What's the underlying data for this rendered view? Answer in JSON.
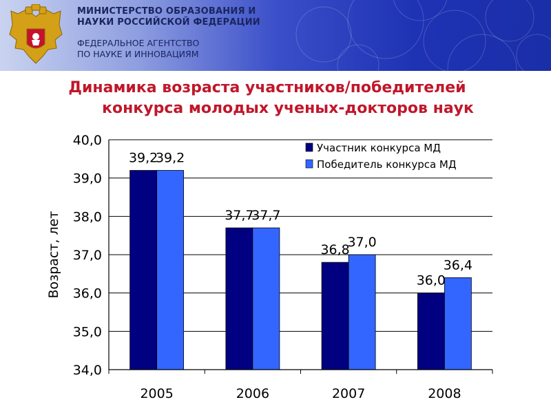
{
  "header": {
    "ministry_line1": "МИНИСТЕРСТВО ОБРАЗОВАНИЯ И",
    "ministry_line2": "НАУКИ РОССИЙСКОЙ ФЕДЕРАЦИИ",
    "agency_line1": "ФЕДЕРАЛЬНОЕ АГЕНТСТВО",
    "agency_line2": "ПО НАУКЕ И ИННОВАЦИЯМ",
    "emblem_icon": "coat-of-arms-eagle-icon",
    "colors": {
      "banner_dark": "#1a2ea8",
      "banner_light": "#c9d3f0",
      "text": "#1a2560"
    }
  },
  "title": {
    "line1": "Динамика возраста участников/победителей",
    "line2": "конкурса молодых ученых-докторов наук",
    "color": "#c0172b"
  },
  "chart_data": {
    "type": "bar",
    "categories": [
      "2005",
      "2006",
      "2007",
      "2008"
    ],
    "series": [
      {
        "name": "Участник конкурса МД",
        "values": [
          39.2,
          37.7,
          36.8,
          36.0
        ],
        "labels": [
          "39,2",
          "37,7",
          "36,8",
          "36,0"
        ],
        "color": "#000080"
      },
      {
        "name": "Победитель конкурса МД",
        "values": [
          39.2,
          37.7,
          37.0,
          36.4
        ],
        "labels": [
          "39,2",
          "37,7",
          "37,0",
          "36,4"
        ],
        "color": "#3366ff"
      }
    ],
    "ylabel": "Возраст, лет",
    "xlabel": "",
    "ylim": [
      34.0,
      40.0
    ],
    "yticks": [
      "34,0",
      "35,0",
      "36,0",
      "37,0",
      "38,0",
      "39,0",
      "40,0"
    ],
    "grid": true,
    "legend_position": "top-right"
  }
}
